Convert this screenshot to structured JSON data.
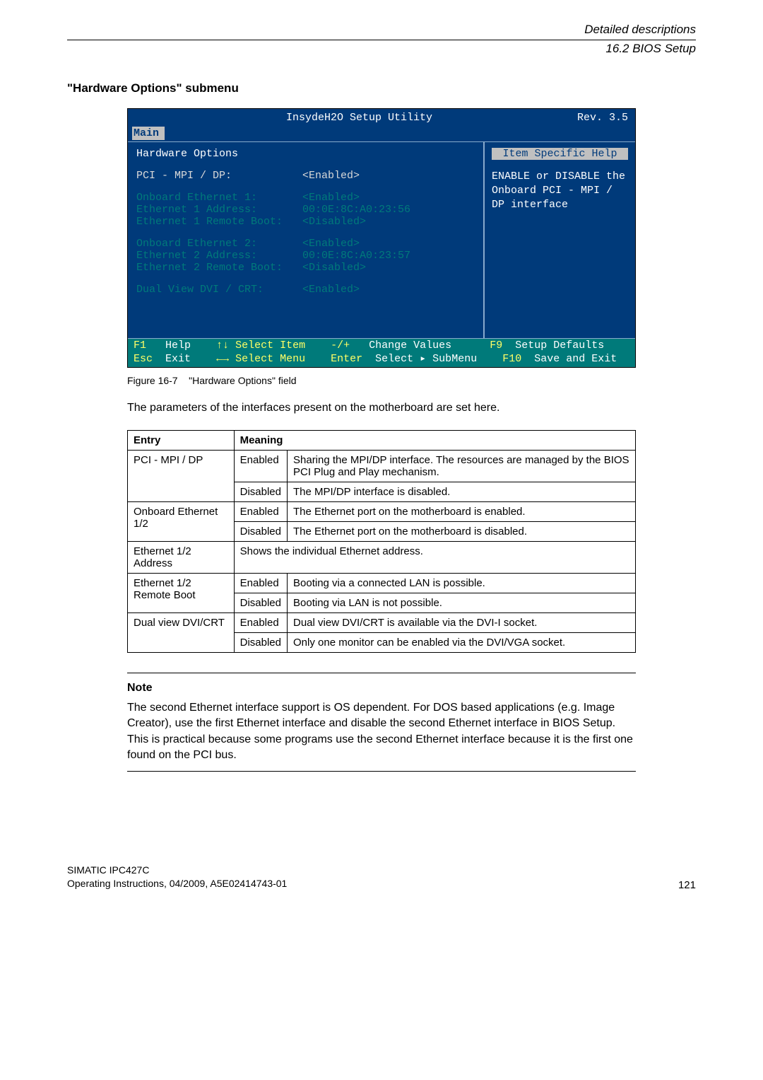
{
  "header": {
    "line1": "Detailed descriptions",
    "line2": "16.2 BIOS Setup"
  },
  "section_title": "\"Hardware Options\" submenu",
  "bios": {
    "title_left": "InsydeH2O Setup Utility",
    "title_right": "Rev. 3.5",
    "tab": "Main",
    "heading": "Hardware Options",
    "help_title": "Item Specific Help",
    "help_body": "ENABLE or DISABLE the Onboard PCI - MPI / DP interface",
    "rows": [
      {
        "label": "PCI - MPI / DP:",
        "value": "<Enabled>",
        "hi": true
      },
      {
        "spacer": true
      },
      {
        "label": "Onboard Ethernet 1:",
        "value": "<Enabled>"
      },
      {
        "label": "Ethernet 1 Address:",
        "value": "00:0E:8C:A0:23:56"
      },
      {
        "label": "Ethernet 1 Remote Boot:",
        "value": "<Disabled>"
      },
      {
        "spacer": true
      },
      {
        "label": "Onboard Ethernet 2:",
        "value": "<Enabled>"
      },
      {
        "label": "Ethernet 2 Address:",
        "value": "00:0E:8C:A0:23:57"
      },
      {
        "label": "Ethernet 2 Remote Boot:",
        "value": "<Disabled>"
      },
      {
        "spacer": true
      },
      {
        "label": "Dual View DVI / CRT:",
        "value": "<Enabled>"
      }
    ],
    "footer": {
      "l1a": "F1",
      "l1b": "Help",
      "l1c": "↑↓ Select Item",
      "l1d": "-/+",
      "l1e": "Change Values",
      "l1f": "F9",
      "l1g": "Setup Defaults",
      "l2a": "Esc",
      "l2b": "Exit",
      "l2c": "←→ Select Menu",
      "l2d": "Enter",
      "l2e": "Select ▸ SubMenu",
      "l2f": "F10",
      "l2g": "Save and Exit"
    }
  },
  "caption_label": "Figure 16-7",
  "caption_text": "\"Hardware Options\" field",
  "intro": "The parameters of the interfaces present on the motherboard are set here.",
  "table": {
    "headers": [
      "Entry",
      "Meaning"
    ],
    "rows": [
      [
        "PCI - MPI / DP",
        "Enabled",
        "Sharing the MPI/DP interface. The resources are managed by the BIOS PCI Plug and Play mechanism."
      ],
      [
        "",
        "Disabled",
        "The MPI/DP interface is disabled."
      ],
      [
        "Onboard Ethernet 1/2",
        "Enabled",
        "The Ethernet port on the motherboard is enabled."
      ],
      [
        "",
        "Disabled",
        "The Ethernet port on the motherboard is disabled."
      ],
      [
        "Ethernet 1/2 Address",
        "",
        "Shows the individual Ethernet address."
      ],
      [
        "Ethernet 1/2 Remote Boot",
        "Enabled",
        "Booting via a connected LAN is possible."
      ],
      [
        "",
        "Disabled",
        "Booting via LAN is not possible."
      ],
      [
        "Dual view DVI/CRT",
        "Enabled",
        "Dual view DVI/CRT is available via the DVI-I socket."
      ],
      [
        "",
        "Disabled",
        "Only one monitor can be enabled via the DVI/VGA socket."
      ]
    ]
  },
  "note_title": "Note",
  "note_body": "The second Ethernet interface support is OS dependent. For DOS based applications (e.g. Image Creator), use the first Ethernet interface and disable the second Ethernet interface in BIOS Setup. This is practical because some programs use the second Ethernet interface because it is the first one found on the PCI bus.",
  "doc_footer": {
    "line1": "SIMATIC IPC427C",
    "line2": "Operating Instructions, 04/2009, A5E02414743-01"
  },
  "page_number": "121"
}
